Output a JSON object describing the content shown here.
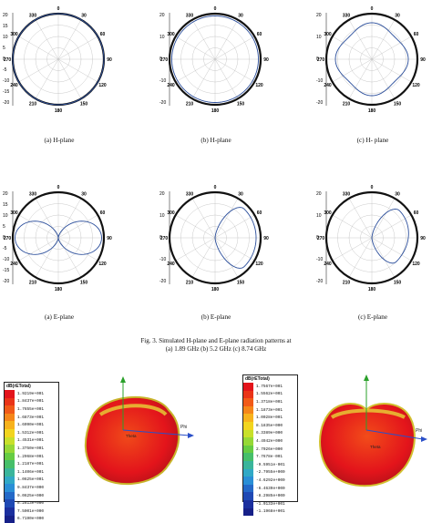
{
  "chart_data": [
    {
      "type": "polar",
      "panel": "top-left",
      "caption": "(a) H-plane",
      "angle_labels": [
        "0",
        "30",
        "60",
        "90",
        "120",
        "150",
        "180",
        "210",
        "240",
        "270",
        "300",
        "330"
      ],
      "radial_ticks": [
        "20",
        "15",
        "10",
        "5",
        "0",
        "-5",
        "-10",
        "-15",
        "-20"
      ],
      "series": [
        {
          "color": "#2c4f9c",
          "points": [
            {
              "angle": 0,
              "value": 20
            },
            {
              "angle": 90,
              "value": 20
            },
            {
              "angle": 180,
              "value": 20
            },
            {
              "angle": 270,
              "value": 20
            }
          ]
        }
      ]
    },
    {
      "type": "polar",
      "panel": "top-middle",
      "caption": "(b) H-plane",
      "angle_labels": [
        "0",
        "30",
        "60",
        "90",
        "120",
        "150",
        "180",
        "210",
        "240",
        "270",
        "300",
        "330"
      ],
      "radial_ticks": [
        "20",
        "10",
        "0",
        "-10",
        "-20"
      ],
      "series": [
        {
          "color": "#2c4f9c",
          "points": [
            {
              "angle": 0,
              "value": 18
            },
            {
              "angle": 90,
              "value": 18
            },
            {
              "angle": 180,
              "value": 18
            },
            {
              "angle": 270,
              "value": 18
            }
          ]
        }
      ]
    },
    {
      "type": "polar",
      "panel": "top-right",
      "caption": "(c) H- plane",
      "angle_labels": [
        "0",
        "30",
        "60",
        "90",
        "120",
        "150",
        "180",
        "210",
        "240",
        "270",
        "300",
        "330"
      ],
      "radial_ticks": [
        "20",
        "10",
        "0",
        "-10",
        "-20"
      ],
      "series": [
        {
          "color": "#2c4f9c",
          "points": [
            {
              "angle": 0,
              "value": 12
            },
            {
              "angle": 45,
              "value": 8
            },
            {
              "angle": 90,
              "value": 12
            },
            {
              "angle": 135,
              "value": 8
            },
            {
              "angle": 180,
              "value": 12
            },
            {
              "angle": 225,
              "value": 8
            },
            {
              "angle": 270,
              "value": 12
            },
            {
              "angle": 315,
              "value": 8
            }
          ]
        }
      ]
    },
    {
      "type": "polar",
      "panel": "bottom-left",
      "caption": "(a) E-plane",
      "angle_labels": [
        "0",
        "30",
        "60",
        "90",
        "120",
        "150",
        "180",
        "210",
        "240",
        "270",
        "300",
        "330"
      ],
      "radial_ticks": [
        "20",
        "15",
        "10",
        "5",
        "0",
        "-5",
        "-10",
        "-15",
        "-20"
      ],
      "series": [
        {
          "color": "#2c4f9c",
          "points": [
            {
              "angle": 0,
              "value": -20
            },
            {
              "angle": 90,
              "value": 18
            },
            {
              "angle": 180,
              "value": -20
            },
            {
              "angle": 270,
              "value": 18
            }
          ]
        }
      ]
    },
    {
      "type": "polar",
      "panel": "bottom-middle",
      "caption": "(b) E-plane",
      "angle_labels": [
        "0",
        "30",
        "60",
        "90",
        "120",
        "150",
        "180",
        "210",
        "240",
        "270",
        "300",
        "330"
      ],
      "radial_ticks": [
        "20",
        "10",
        "0",
        "-10",
        "-20"
      ],
      "series": [
        {
          "color": "#2c4f9c",
          "points": [
            {
              "angle": 0,
              "value": -20
            },
            {
              "angle": 45,
              "value": 16
            },
            {
              "angle": 135,
              "value": 16
            },
            {
              "angle": 180,
              "value": -20
            }
          ]
        }
      ]
    },
    {
      "type": "polar",
      "panel": "bottom-right",
      "caption": "(c) E-plane",
      "angle_labels": [
        "0",
        "30",
        "60",
        "90",
        "120",
        "150",
        "180",
        "210",
        "240",
        "270",
        "300",
        "330"
      ],
      "radial_ticks": [
        "20",
        "10",
        "0",
        "-10",
        "-20"
      ],
      "series": [
        {
          "color": "#2c4f9c",
          "points": [
            {
              "angle": 0,
              "value": -20
            },
            {
              "angle": 45,
              "value": 14
            },
            {
              "angle": 135,
              "value": 10
            },
            {
              "angle": 180,
              "value": -20
            }
          ]
        }
      ]
    }
  ],
  "figure_caption_line1": "Fig. 3. Simulated H-plane and E-plane radiation patterns at",
  "figure_caption_line2": "(a) 1.89 GHz (b) 5.2 GHz (c) 8.74 GHz",
  "legend_left": {
    "title": "dB(rETotal)",
    "labels": [
      "1.9219e+001",
      "1.8437e+001",
      "1.7655e+001",
      "1.6873e+001",
      "1.6090e+001",
      "1.5312e+001",
      "1.4531e+001",
      "1.3750e+001",
      "1.2968e+001",
      "1.2187e+001",
      "1.1406e+001",
      "1.0625e+001",
      "9.8437e+000",
      "9.0625e+000",
      "8.2813e+000",
      "7.5001e+000",
      "6.7190e+000"
    ],
    "colors": [
      "#e3141b",
      "#ea3418",
      "#f15a18",
      "#f58619",
      "#f7b21c",
      "#f2d51f",
      "#c8e02a",
      "#96d836",
      "#66cc43",
      "#46bf6a",
      "#3ab59b",
      "#31a9c6",
      "#2a8fd6",
      "#2469c8",
      "#1f49b4",
      "#1b2f9e",
      "#162088"
    ]
  },
  "legend_right": {
    "title": "dB(rETotal)",
    "labels": [
      "1.7567e+001",
      "1.5562e+001",
      "1.3718e+001",
      "1.1873e+001",
      "1.0028e+001",
      "8.1835e+000",
      "6.3389e+000",
      "4.4942e+000",
      "2.7026e+000",
      "7.7678e-001",
      "-9.5951e-001",
      "-2.7955e+000",
      "-4.6292e+000",
      "-6.4639e+000",
      "-8.2985e+000",
      "-1.0133e+001",
      "-1.1968e+001"
    ],
    "colors": [
      "#e3141b",
      "#ea3418",
      "#f15a18",
      "#f58619",
      "#f7b21c",
      "#f2d51f",
      "#c8e02a",
      "#96d836",
      "#66cc43",
      "#46bf6a",
      "#3ab59b",
      "#31a9c6",
      "#2a8fd6",
      "#2469c8",
      "#1f49b4",
      "#1b2f9e",
      "#162088"
    ]
  },
  "axis_labels": {
    "phi": "Phi",
    "theta": "Theta"
  }
}
